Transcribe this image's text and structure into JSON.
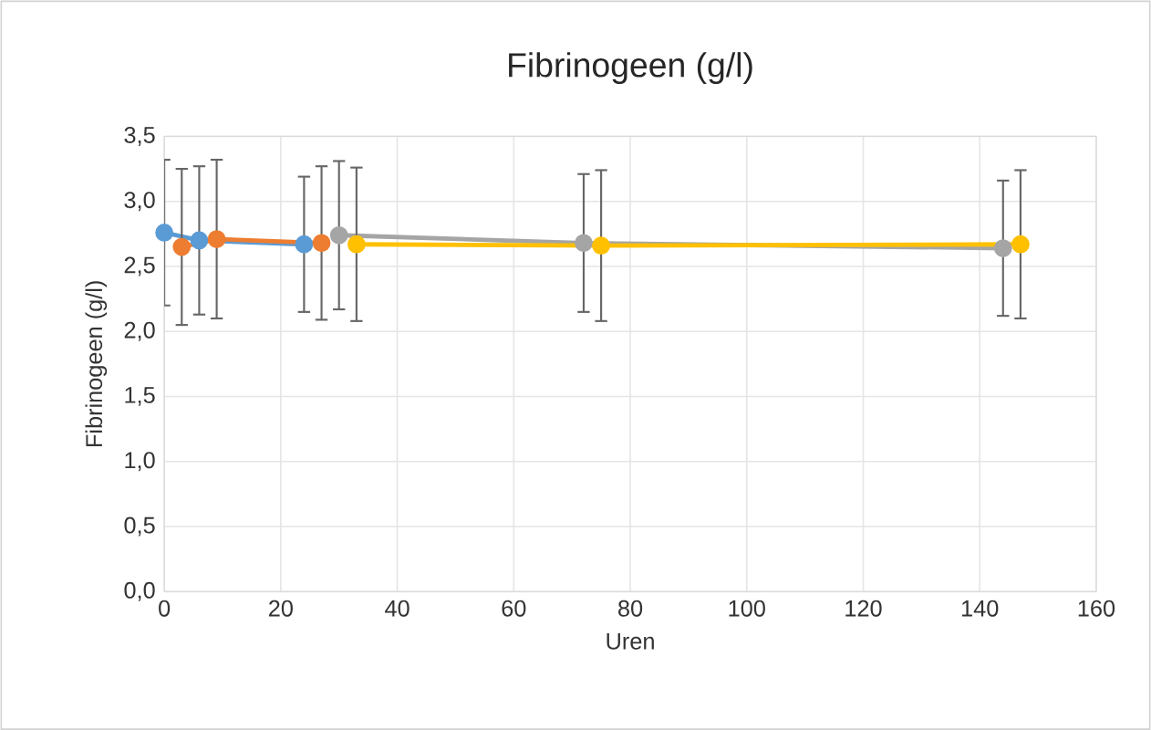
{
  "chart_data": {
    "type": "line",
    "title": "Fibrinogeen (g/l)",
    "xlabel": "Uren",
    "ylabel": "Fibrinogeen (g/l)",
    "xlim": [
      0,
      160
    ],
    "xticks": [
      0,
      20,
      40,
      60,
      80,
      100,
      120,
      140,
      160
    ],
    "ylim": [
      0,
      3.5
    ],
    "yticks": [
      {
        "value": 0,
        "label": "0,0"
      },
      {
        "value": 0.5,
        "label": "0,5"
      },
      {
        "value": 1,
        "label": "1,0"
      },
      {
        "value": 1.5,
        "label": "1,5"
      },
      {
        "value": 2,
        "label": "2,0"
      },
      {
        "value": 2.5,
        "label": "2,5"
      },
      {
        "value": 3,
        "label": "3,0"
      },
      {
        "value": 3.5,
        "label": "3,5"
      }
    ],
    "grid": true,
    "marker": "circle",
    "line_style": "solid",
    "series": [
      {
        "color": "#5b9bd5",
        "x": [
          0,
          6,
          24
        ],
        "values": [
          2.76,
          2.7,
          2.67
        ],
        "errors": [
          0.56,
          0.57,
          0.52
        ]
      },
      {
        "color": "#ed7d31",
        "x": [
          3,
          9,
          27
        ],
        "values": [
          2.65,
          2.71,
          2.68
        ],
        "errors": [
          0.6,
          0.61,
          0.59
        ]
      },
      {
        "color": "#a5a5a5",
        "x": [
          30,
          72,
          144
        ],
        "values": [
          2.74,
          2.68,
          2.64
        ],
        "errors": [
          0.57,
          0.53,
          0.52
        ]
      },
      {
        "color": "#ffc000",
        "x": [
          33,
          75,
          147
        ],
        "values": [
          2.67,
          2.66,
          2.67
        ],
        "errors": [
          0.59,
          0.58,
          0.57
        ]
      }
    ]
  }
}
